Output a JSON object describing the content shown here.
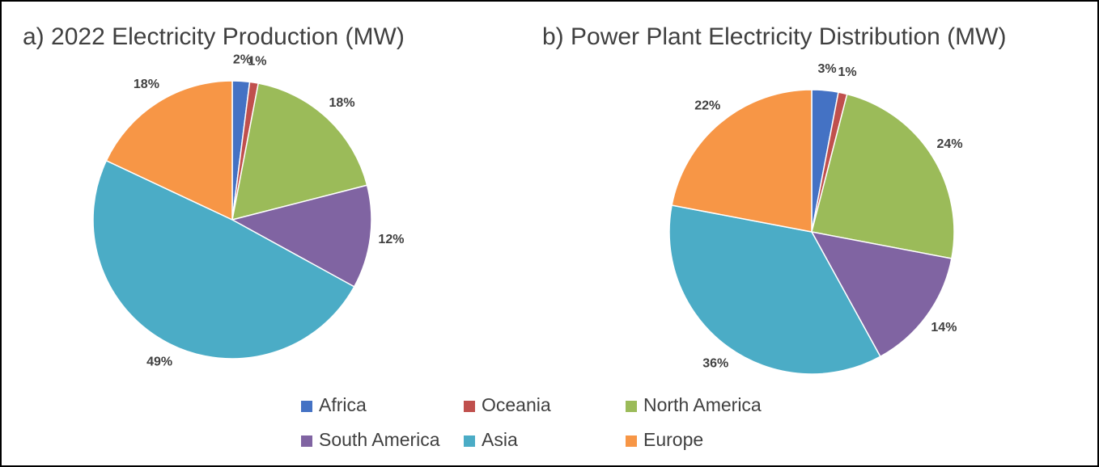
{
  "chart_data": [
    {
      "type": "pie",
      "title": "a) 2022 Electricity Production (MW)",
      "categories": [
        "Africa",
        "Oceania",
        "North America",
        "South America",
        "Asia",
        "Europe"
      ],
      "values": [
        2,
        1,
        18,
        12,
        49,
        18
      ],
      "value_labels": [
        "2%",
        "1%",
        "18%",
        "12%",
        "49%",
        "18%"
      ],
      "colors": [
        "#4472c4",
        "#c0504d",
        "#9bbb59",
        "#8064a2",
        "#4bacc6",
        "#f79646"
      ]
    },
    {
      "type": "pie",
      "title": "b) Power Plant Electricity Distribution (MW)",
      "categories": [
        "Africa",
        "Oceania",
        "North America",
        "South America",
        "Asia",
        "Europe"
      ],
      "values": [
        3,
        1,
        24,
        14,
        36,
        22
      ],
      "value_labels": [
        "3%",
        "1%",
        "24%",
        "14%",
        "36%",
        "22%"
      ],
      "colors": [
        "#4472c4",
        "#c0504d",
        "#9bbb59",
        "#8064a2",
        "#4bacc6",
        "#f79646"
      ]
    }
  ]
}
